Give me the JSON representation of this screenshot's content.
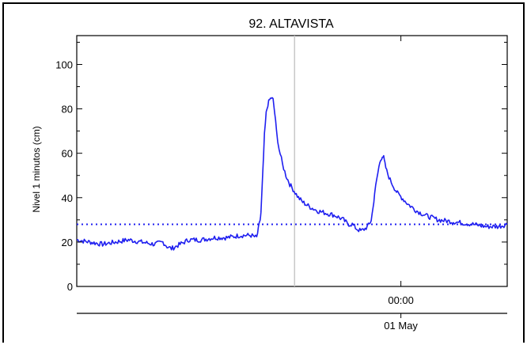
{
  "chart_data": {
    "type": "line",
    "title": "92. ALTAVISTA",
    "ylabel": "Nivel 1 minutos (cm)",
    "xlabel": "",
    "ylim": [
      0,
      113
    ],
    "y_ticks": [
      0,
      20,
      40,
      60,
      80,
      100
    ],
    "x_tick_labels": [
      {
        "time": "00:00",
        "date": "01 May"
      }
    ],
    "grid": false,
    "series": [
      {
        "color": "#1f1ff0",
        "style": "solid",
        "points": [
          [
            0.0,
            21
          ],
          [
            0.03,
            20
          ],
          [
            0.06,
            19
          ],
          [
            0.09,
            20
          ],
          [
            0.12,
            21
          ],
          [
            0.15,
            20
          ],
          [
            0.18,
            19
          ],
          [
            0.2,
            20
          ],
          [
            0.21,
            18
          ],
          [
            0.22,
            17
          ],
          [
            0.24,
            19
          ],
          [
            0.26,
            21
          ],
          [
            0.29,
            21
          ],
          [
            0.32,
            22
          ],
          [
            0.35,
            22
          ],
          [
            0.38,
            23
          ],
          [
            0.405,
            23
          ],
          [
            0.418,
            22
          ],
          [
            0.422,
            26
          ],
          [
            0.426,
            30
          ],
          [
            0.428,
            33
          ],
          [
            0.432,
            50
          ],
          [
            0.436,
            68
          ],
          [
            0.44,
            78
          ],
          [
            0.444,
            82
          ],
          [
            0.448,
            84
          ],
          [
            0.452,
            85
          ],
          [
            0.456,
            84
          ],
          [
            0.46,
            78
          ],
          [
            0.464,
            70
          ],
          [
            0.47,
            62
          ],
          [
            0.478,
            55
          ],
          [
            0.486,
            50
          ],
          [
            0.495,
            46
          ],
          [
            0.505,
            43
          ],
          [
            0.515,
            40
          ],
          [
            0.525,
            38
          ],
          [
            0.54,
            36
          ],
          [
            0.56,
            34
          ],
          [
            0.58,
            33
          ],
          [
            0.6,
            32
          ],
          [
            0.62,
            30
          ],
          [
            0.63,
            28
          ],
          [
            0.64,
            28
          ],
          [
            0.65,
            26
          ],
          [
            0.66,
            25
          ],
          [
            0.67,
            26
          ],
          [
            0.675,
            27
          ],
          [
            0.68,
            28
          ],
          [
            0.684,
            30
          ],
          [
            0.688,
            35
          ],
          [
            0.692,
            42
          ],
          [
            0.697,
            48
          ],
          [
            0.702,
            54
          ],
          [
            0.706,
            57
          ],
          [
            0.71,
            59
          ],
          [
            0.713,
            58
          ],
          [
            0.716,
            55
          ],
          [
            0.72,
            52
          ],
          [
            0.728,
            48
          ],
          [
            0.736,
            45
          ],
          [
            0.745,
            42
          ],
          [
            0.755,
            40
          ],
          [
            0.77,
            37
          ],
          [
            0.79,
            34
          ],
          [
            0.81,
            32
          ],
          [
            0.84,
            30
          ],
          [
            0.88,
            29
          ],
          [
            0.92,
            28
          ],
          [
            0.95,
            27
          ],
          [
            0.98,
            27
          ],
          [
            1.0,
            28
          ]
        ]
      },
      {
        "color": "#1f1ff0",
        "style": "dotted",
        "points": [
          [
            0.0,
            28
          ],
          [
            1.0,
            28
          ]
        ]
      }
    ],
    "vertical_marker_fraction": 0.506
  }
}
